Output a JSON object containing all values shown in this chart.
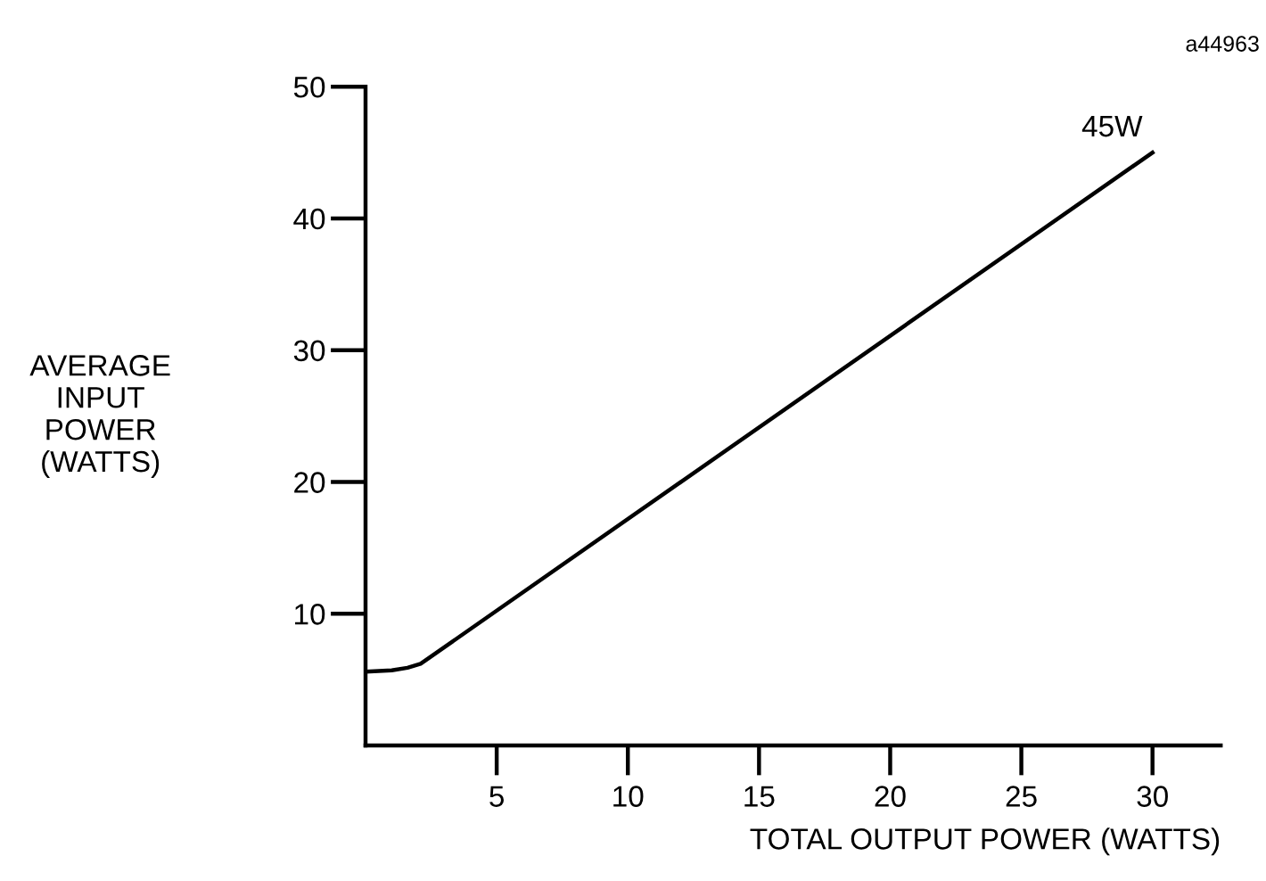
{
  "chart_data": {
    "type": "line",
    "xlabel": "TOTAL OUTPUT POWER (WATTS)",
    "ylabel": "AVERAGE\nINPUT\nPOWER\n(WATTS)",
    "x": [
      0,
      1,
      1.6,
      2.1,
      30
    ],
    "series": [
      {
        "color": "#000000",
        "values": [
          5.6,
          5.7,
          5.9,
          6.2,
          45
        ]
      }
    ],
    "xlim": [
      0,
      32.6
    ],
    "xticks": [
      5,
      10,
      15,
      20,
      25,
      30
    ],
    "ylim": [
      0,
      50
    ],
    "yticks": [
      10,
      20,
      30,
      40,
      50
    ],
    "grid": false,
    "legend": false,
    "marker": "none",
    "line_style": "solid",
    "annotations": [
      {
        "text": "45W",
        "x": 30,
        "y": 45
      },
      "a44963"
    ]
  }
}
